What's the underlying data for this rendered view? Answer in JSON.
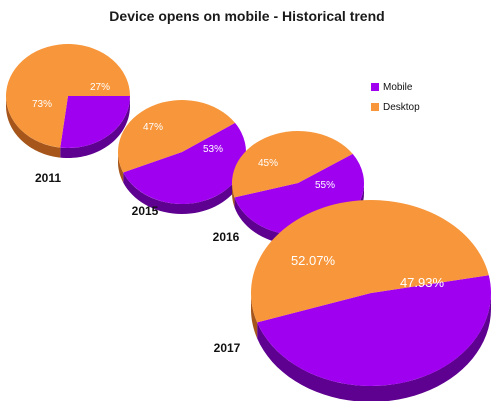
{
  "chart_data": {
    "type": "pie",
    "title": "Device opens on mobile - Historical trend",
    "series_names": [
      "Mobile",
      "Desktop"
    ],
    "colors": {
      "Mobile": "#a000f0",
      "Mobile_side": "#5e0090",
      "Desktop": "#f7963a",
      "Desktop_side": "#a6561a"
    },
    "legend_position": "right",
    "pies": [
      {
        "year": "2011",
        "mobile": 27,
        "desktop": 73,
        "mobile_label": "27%",
        "desktop_label": "73%"
      },
      {
        "year": "2015",
        "mobile": 53,
        "desktop": 47,
        "mobile_label": "53%",
        "desktop_label": "47%"
      },
      {
        "year": "2016",
        "mobile": 55,
        "desktop": 45,
        "mobile_label": "55%",
        "desktop_label": "45%"
      },
      {
        "year": "2017",
        "mobile": 47.93,
        "desktop": 52.07,
        "mobile_label": "47.93%",
        "desktop_label": "52.07%"
      }
    ]
  }
}
